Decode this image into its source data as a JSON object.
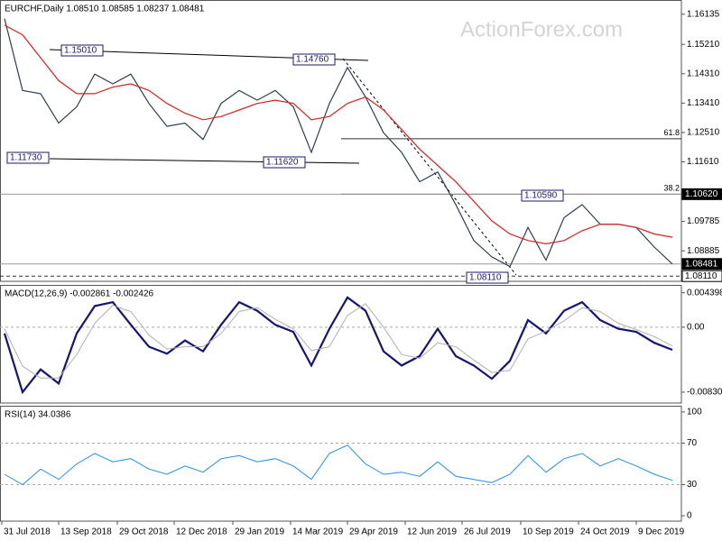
{
  "chart_data": [
    {
      "type": "line",
      "title": "EURCHF,Daily  1.08510 1.08585 1.08237 1.08481",
      "watermark": "ActionForex.com",
      "xlim": [
        -0.25,
        37.5
      ],
      "ylim": [
        1.0795,
        1.1657
      ],
      "yticks": [
        {
          "value": 1.16135,
          "label": "1.16135"
        },
        {
          "value": 1.1521,
          "label": "1.15210"
        },
        {
          "value": 1.1431,
          "label": "1.14310"
        },
        {
          "value": 1.1341,
          "label": "1.13410"
        },
        {
          "value": 1.1251,
          "label": "1.12510"
        },
        {
          "value": 1.1161,
          "label": "1.11610"
        },
        {
          "value": 1.09785,
          "label": "1.09785"
        },
        {
          "value": 1.08885,
          "label": "1.08885"
        }
      ],
      "series": [
        {
          "name": "EURCHF",
          "color": "#2b3f52",
          "values": [
            1.16,
            1.138,
            1.137,
            1.128,
            1.133,
            1.143,
            1.14,
            1.143,
            1.134,
            1.127,
            1.128,
            1.123,
            1.134,
            1.138,
            1.135,
            1.138,
            1.133,
            1.119,
            1.134,
            1.145,
            1.136,
            1.125,
            1.119,
            1.11,
            1.113,
            1.103,
            1.092,
            1.087,
            1.084,
            1.096,
            1.086,
            1.099,
            1.103,
            1.097,
            1.097,
            1.096,
            1.09,
            1.08481
          ]
        },
        {
          "name": "MA",
          "color": "#e02020",
          "values": [
            1.158,
            1.155,
            1.148,
            1.141,
            1.137,
            1.137,
            1.139,
            1.14,
            1.138,
            1.134,
            1.131,
            1.129,
            1.13,
            1.132,
            1.134,
            1.135,
            1.134,
            1.129,
            1.13,
            1.134,
            1.136,
            1.132,
            1.126,
            1.12,
            1.115,
            1.11,
            1.104,
            1.098,
            1.094,
            1.092,
            1.091,
            1.092,
            1.095,
            1.097,
            1.097,
            1.096,
            1.094,
            1.093
          ]
        }
      ],
      "price_labels": [
        {
          "value": 1.1062,
          "label": "1.10620",
          "style": "dark"
        },
        {
          "value": 1.08481,
          "label": "1.08481",
          "style": "dark"
        },
        {
          "value": 1.0811,
          "label": "1.08110",
          "style": "light"
        }
      ],
      "fib_levels": [
        {
          "value": 1.1232,
          "label": "61.8"
        },
        {
          "value": 1.1062,
          "label": "38.2"
        }
      ],
      "annotations": [
        "1.15010",
        "1.14760",
        "1.11730",
        "1.11620",
        "1.10590",
        "1.08110"
      ]
    },
    {
      "type": "line",
      "title": "MACD(12,26,9) -0.002861 -0.002426",
      "xlim": [
        -0.25,
        37.5
      ],
      "ylim": [
        -0.0097,
        0.0054
      ],
      "yticks": [
        0.004398,
        {
          "value": 0,
          "label": "0.00"
        },
        -0.008306
      ],
      "series": [
        {
          "name": "MACD",
          "color": "#14147a",
          "width": 2.2,
          "values": [
            -0.0008,
            -0.0083,
            -0.0054,
            -0.0072,
            -0.0008,
            0.0027,
            0.0032,
            0.0003,
            -0.0025,
            -0.0034,
            -0.0017,
            -0.0031,
            0.0003,
            0.0032,
            0.0021,
            0.0003,
            -0.0006,
            -0.0049,
            -0.0002,
            0.0038,
            0.0021,
            -0.0031,
            -0.0049,
            -0.0037,
            -0.0002,
            -0.0037,
            -0.0049,
            -0.0066,
            -0.0043,
            0.0009,
            -0.0008,
            0.0021,
            0.0032,
            0.0009,
            -0.0002,
            -0.0006,
            -0.002,
            -0.0029
          ]
        },
        {
          "name": "Signal",
          "color": "#b0b0b0",
          "width": 1,
          "values": [
            -0.0002,
            -0.005,
            -0.0065,
            -0.0065,
            -0.0035,
            0.0005,
            0.0028,
            0.002,
            -0.001,
            -0.0028,
            -0.0025,
            -0.0025,
            -0.0008,
            0.002,
            0.0025,
            0.001,
            -0.0002,
            -0.003,
            -0.0025,
            0.0015,
            0.003,
            0.0,
            -0.0035,
            -0.004,
            -0.002,
            -0.0025,
            -0.0042,
            -0.0058,
            -0.0055,
            -0.0015,
            -0.0005,
            0.0008,
            0.0025,
            0.002,
            0.0005,
            -0.0003,
            -0.0012,
            -0.0024
          ]
        }
      ]
    },
    {
      "type": "line",
      "title": "RSI(14) 34.0386",
      "xlim": [
        -0.25,
        37.5
      ],
      "ylim": [
        -5.2,
        106
      ],
      "yticks": [
        100,
        70,
        30,
        0
      ],
      "xticks": [
        {
          "value": -0.15,
          "label": "31 Jul 2018"
        },
        {
          "value": 3,
          "label": "13 Sep 2018"
        },
        {
          "value": 6.25,
          "label": "29 Oct 2018"
        },
        {
          "value": 9.4,
          "label": "12 Dec 2018"
        },
        {
          "value": 12.65,
          "label": "29 Jan 2019"
        },
        {
          "value": 15.85,
          "label": "14 Mar 2019"
        },
        {
          "value": 19,
          "label": "29 Apr 2019"
        },
        {
          "value": 22.2,
          "label": "12 Jun 2019"
        },
        {
          "value": 25.35,
          "label": "26 Jul 2019"
        },
        {
          "value": 28.6,
          "label": "10 Sep 2019"
        },
        {
          "value": 31.8,
          "label": "24 Oct 2019"
        },
        {
          "value": 35,
          "label": "9 Dec 2019"
        }
      ],
      "series": [
        {
          "name": "RSI",
          "color": "#1e90ff",
          "width": 1,
          "values": [
            40,
            30,
            45,
            35,
            50,
            60,
            52,
            55,
            45,
            40,
            48,
            42,
            55,
            58,
            52,
            55,
            48,
            35,
            60,
            68,
            50,
            40,
            42,
            38,
            52,
            38,
            35,
            32,
            40,
            58,
            42,
            55,
            60,
            48,
            55,
            48,
            40,
            34.0386
          ]
        }
      ]
    }
  ]
}
